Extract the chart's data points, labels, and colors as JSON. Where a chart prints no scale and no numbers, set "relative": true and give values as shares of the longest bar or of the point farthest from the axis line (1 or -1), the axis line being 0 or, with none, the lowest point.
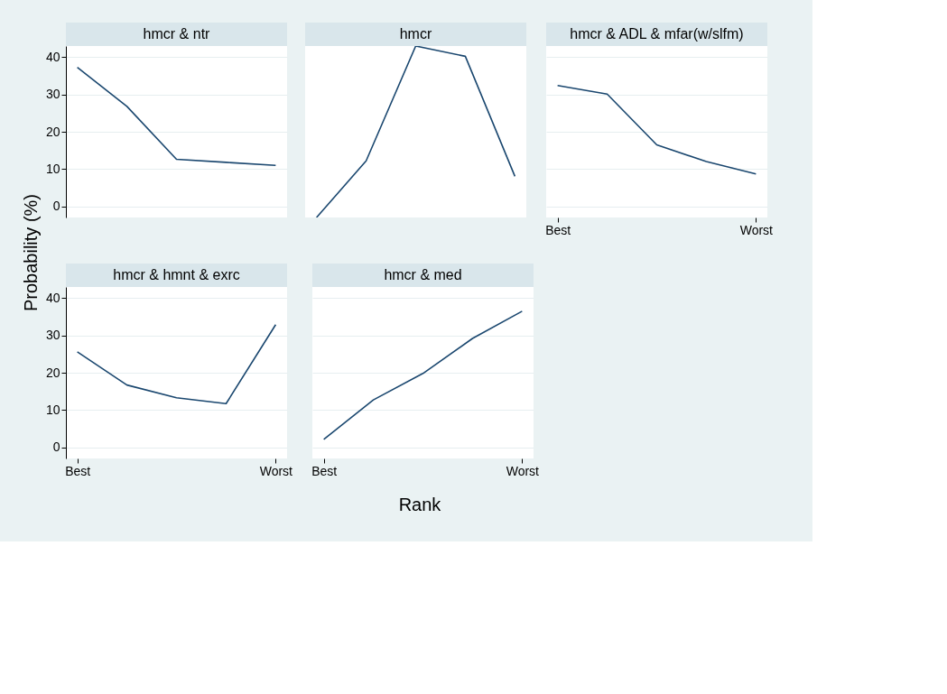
{
  "chart_data": [
    {
      "type": "line",
      "title": "hmcr & ntr",
      "ylabel": "Probability (%)",
      "categories": [
        null,
        null,
        null,
        null,
        null
      ],
      "series": [
        {
          "color": "#1a476f",
          "values": [
            37.3,
            26.8,
            12.6,
            11.8,
            11.0
          ]
        }
      ],
      "ylim": [
        -3,
        43
      ],
      "yticks": [
        0,
        10,
        20,
        30,
        40
      ],
      "grid": "y",
      "tick_labels": "y"
    },
    {
      "type": "line",
      "title": "hmcr",
      "categories": [
        null,
        null,
        null,
        null,
        null
      ],
      "series": [
        {
          "color": "#1a476f",
          "values": [
            0,
            0.33,
            1,
            0.94,
            0.24
          ]
        }
      ],
      "relative": true,
      "tick_labels": false
    },
    {
      "type": "line",
      "title": "hmcr & ADL & mfar(w/slfm)",
      "categories": [
        "Best",
        null,
        null,
        null,
        "Worst"
      ],
      "series": [
        {
          "color": "#1a476f",
          "values": [
            32.4,
            30.1,
            16.5,
            12.0,
            8.7
          ]
        }
      ],
      "ylim": [
        -3,
        43
      ],
      "yticks": [
        0,
        10,
        20,
        30,
        40
      ],
      "grid": "y",
      "tick_labels": "x"
    },
    {
      "type": "line",
      "title": "hmcr & hmnt & exrc",
      "categories": [
        "Best",
        null,
        null,
        null,
        "Worst"
      ],
      "series": [
        {
          "color": "#1a476f",
          "values": [
            25.6,
            16.7,
            13.3,
            11.7,
            32.9
          ]
        }
      ],
      "ylim": [
        -3,
        43
      ],
      "yticks": [
        0,
        10,
        20,
        30,
        40
      ],
      "grid": "y"
    },
    {
      "type": "line",
      "title": "hmcr & med",
      "xlabel": "Rank",
      "categories": [
        "Best",
        null,
        null,
        null,
        "Worst"
      ],
      "series": [
        {
          "color": "#1a476f",
          "values": [
            2.1,
            12.7,
            19.8,
            29.2,
            36.5
          ]
        }
      ],
      "ylim": [
        -3,
        43
      ],
      "yticks": [
        0,
        10,
        20,
        30,
        40
      ],
      "grid": "y",
      "tick_labels": "x"
    }
  ]
}
